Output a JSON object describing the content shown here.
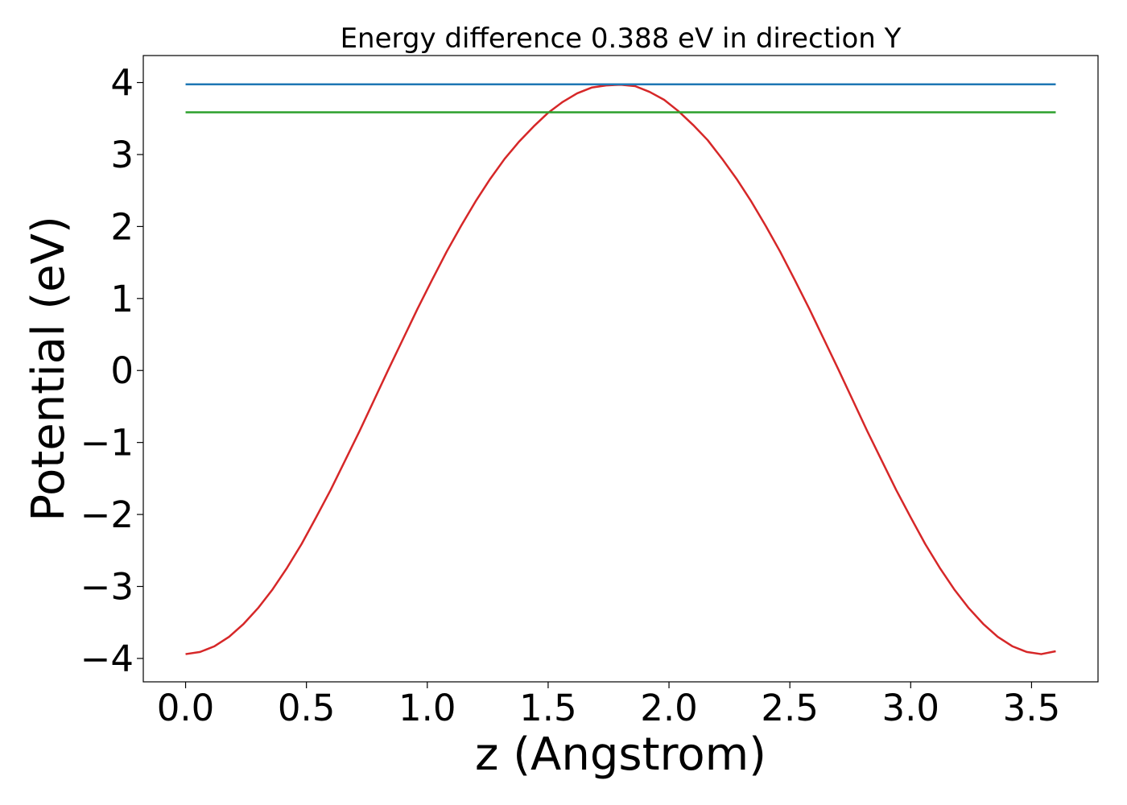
{
  "chart_data": {
    "type": "line",
    "title": "Energy difference 0.388 eV in direction Y",
    "xlabel": "z (Angstrom)",
    "ylabel": "Potential (eV)",
    "xlim": [
      -0.175,
      3.775
    ],
    "ylim": [
      -4.325,
      4.375
    ],
    "xticks": [
      0.0,
      0.5,
      1.0,
      1.5,
      2.0,
      2.5,
      3.0,
      3.5
    ],
    "xtick_labels": [
      "0.0",
      "0.5",
      "1.0",
      "1.5",
      "2.0",
      "2.5",
      "3.0",
      "3.5"
    ],
    "yticks": [
      -4,
      -3,
      -2,
      -1,
      0,
      1,
      2,
      3,
      4
    ],
    "ytick_labels": [
      "−4",
      "−3",
      "−2",
      "−1",
      "0",
      "1",
      "2",
      "3",
      "4"
    ],
    "grid": false,
    "series": [
      {
        "color": "#d62728",
        "x": [
          0.0,
          0.06,
          0.12,
          0.18,
          0.24,
          0.3,
          0.36,
          0.42,
          0.48,
          0.54,
          0.6,
          0.66,
          0.72,
          0.78,
          0.84,
          0.9,
          0.96,
          1.02,
          1.08,
          1.14,
          1.2,
          1.26,
          1.32,
          1.38,
          1.44,
          1.5,
          1.56,
          1.62,
          1.68,
          1.74,
          1.8,
          1.86,
          1.92,
          1.98,
          2.04,
          2.1,
          2.16,
          2.22,
          2.28,
          2.34,
          2.4,
          2.46,
          2.52,
          2.58,
          2.64,
          2.7,
          2.76,
          2.82,
          2.88,
          2.94,
          3.0,
          3.06,
          3.12,
          3.18,
          3.24,
          3.3,
          3.36,
          3.42,
          3.48,
          3.54,
          3.6
        ],
        "y": [
          -3.94,
          -3.91,
          -3.83,
          -3.7,
          -3.52,
          -3.3,
          -3.04,
          -2.74,
          -2.41,
          -2.04,
          -1.66,
          -1.25,
          -0.84,
          -0.41,
          0.02,
          0.44,
          0.86,
          1.26,
          1.65,
          2.01,
          2.35,
          2.66,
          2.94,
          3.18,
          3.39,
          3.58,
          3.73,
          3.85,
          3.93,
          3.96,
          3.97,
          3.95,
          3.87,
          3.76,
          3.6,
          3.41,
          3.2,
          2.94,
          2.66,
          2.35,
          2.01,
          1.65,
          1.26,
          0.86,
          0.44,
          0.02,
          -0.41,
          -0.84,
          -1.25,
          -1.66,
          -2.04,
          -2.41,
          -2.74,
          -3.04,
          -3.3,
          -3.52,
          -3.7,
          -3.83,
          -3.91,
          -3.94,
          -3.9
        ]
      },
      {
        "color": "#1f77b4",
        "x": [
          0.0,
          3.6
        ],
        "y": [
          3.975,
          3.975
        ]
      },
      {
        "color": "#2ca02c",
        "x": [
          0.0,
          3.6
        ],
        "y": [
          3.587,
          3.587
        ]
      }
    ]
  }
}
